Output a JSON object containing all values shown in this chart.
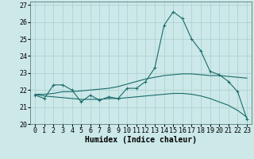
{
  "title": "",
  "xlabel": "Humidex (Indice chaleur)",
  "background_color": "#cce8e8",
  "line_color": "#1a6b6b",
  "x_values": [
    0,
    1,
    2,
    3,
    4,
    5,
    6,
    7,
    8,
    9,
    10,
    11,
    12,
    13,
    14,
    15,
    16,
    17,
    18,
    19,
    20,
    21,
    22,
    23
  ],
  "y_main": [
    21.7,
    21.5,
    22.3,
    22.3,
    22.0,
    21.3,
    21.7,
    21.4,
    21.6,
    21.5,
    22.1,
    22.1,
    22.5,
    23.3,
    25.8,
    26.6,
    26.2,
    25.0,
    24.3,
    23.1,
    22.9,
    22.5,
    21.9,
    20.3
  ],
  "y_smooth_upper": [
    21.75,
    21.75,
    21.8,
    21.9,
    21.9,
    21.95,
    22.0,
    22.05,
    22.1,
    22.2,
    22.35,
    22.5,
    22.65,
    22.75,
    22.85,
    22.9,
    22.95,
    22.95,
    22.9,
    22.85,
    22.85,
    22.8,
    22.75,
    22.7
  ],
  "y_smooth_lower": [
    21.75,
    21.65,
    21.6,
    21.55,
    21.5,
    21.45,
    21.45,
    21.45,
    21.5,
    21.5,
    21.55,
    21.6,
    21.65,
    21.7,
    21.75,
    21.8,
    21.8,
    21.75,
    21.65,
    21.5,
    21.3,
    21.1,
    20.8,
    20.4
  ],
  "ylim": [
    20,
    27.2
  ],
  "yticks": [
    20,
    21,
    22,
    23,
    24,
    25,
    26,
    27
  ],
  "grid_color": "#aacfcf",
  "axis_fontsize": 6,
  "tick_fontsize": 6
}
